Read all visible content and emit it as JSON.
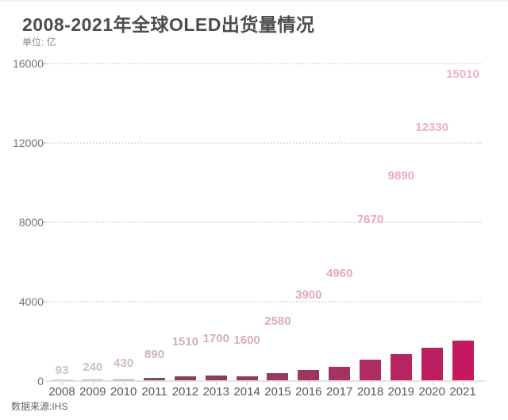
{
  "header": {
    "title": "2008-2021年全球OLED出货量情况",
    "unit_label": "单位: 亿"
  },
  "footer": {
    "source": "数据来源:IHS"
  },
  "colors": {
    "accent_bar": "#c31a5f",
    "muted_bar": "#8a3f60",
    "gray_bar": "#c9c2c4",
    "label_pink": "#f2b0ca",
    "title_text": "#4d4d4d",
    "axis_text": "#737373"
  },
  "chart_data": {
    "type": "bar",
    "title": "2008-2021年全球OLED出货量情况",
    "unit": "亿",
    "xlabel": "",
    "ylabel": "单位: 亿",
    "categories": [
      "2008",
      "2009",
      "2010",
      "2011",
      "2012",
      "2013",
      "2014",
      "2015",
      "2016",
      "2017",
      "2018",
      "2019",
      "2020",
      "2021"
    ],
    "values": [
      93,
      240,
      430,
      890,
      1510,
      1700,
      1600,
      2580,
      3900,
      4960,
      7670,
      9890,
      12330,
      15010
    ],
    "ylim": [
      0,
      16000
    ],
    "yticks": [
      0,
      4000,
      8000,
      12000,
      16000
    ],
    "grid": "horizontal-dotted",
    "legend": "none",
    "source": "数据来源:IHS",
    "bar_colors": [
      "#c9c2c4",
      "#b3a8ab",
      "#99838b",
      "#7f4d62",
      "#8a3f60",
      "#8d3c5f",
      "#8f3a5e",
      "#953a60",
      "#9e3560",
      "#a53361",
      "#ad2c61",
      "#b62462",
      "#bd1e60",
      "#c31a5f"
    ],
    "value_label_colors": [
      "#c8c2c4",
      "#c9bfc2",
      "#ccbcc1",
      "#cfb3bd",
      "#d3aebc",
      "#d4adbc",
      "#d4adbc",
      "#dcaabf",
      "#e0a9c0",
      "#e3a8c1",
      "#e8a7c3",
      "#ecaac6",
      "#efadc8",
      "#f2b0ca"
    ]
  }
}
